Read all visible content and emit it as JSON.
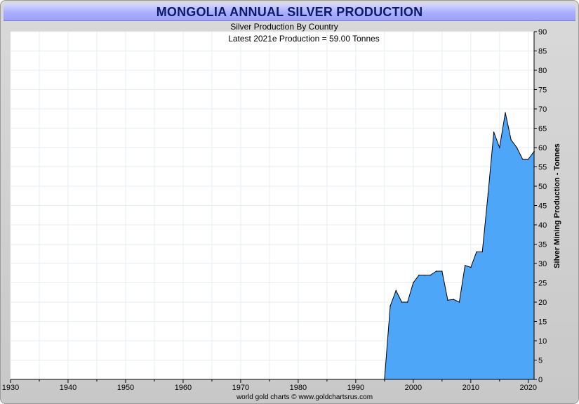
{
  "title": "MONGOLIA ANNUAL SILVER PRODUCTION",
  "chart_data": {
    "type": "area",
    "subtitle": "Silver Production By Country",
    "annotation": "Latest 2021e Production = 59.00 Tonnes",
    "ylabel": "Silver Mining Production - Tonnes",
    "xlabel": "",
    "footer": "world gold charts © www.goldchartsrus.com",
    "xlim": [
      1930,
      2021
    ],
    "ylim": [
      0,
      90
    ],
    "x_ticks": [
      1930,
      1940,
      1950,
      1960,
      1970,
      1980,
      1990,
      2000,
      2010,
      2020
    ],
    "y_ticks": [
      0,
      5,
      10,
      15,
      20,
      25,
      30,
      35,
      40,
      45,
      50,
      55,
      60,
      65,
      70,
      75,
      80,
      85,
      90
    ],
    "grid": true,
    "fill_color": "#4da6f7",
    "line_color": "#000000",
    "series": [
      {
        "name": "Mongolia",
        "x": [
          1995,
          1996,
          1997,
          1998,
          1999,
          2000,
          2001,
          2002,
          2003,
          2004,
          2005,
          2006,
          2007,
          2008,
          2009,
          2010,
          2011,
          2012,
          2013,
          2014,
          2015,
          2016,
          2017,
          2018,
          2019,
          2020,
          2021
        ],
        "values": [
          0,
          19,
          23,
          20,
          20,
          25,
          27,
          27,
          27,
          28,
          28,
          20.5,
          20.7,
          20,
          29.5,
          29,
          33,
          33,
          48,
          64,
          60,
          69,
          62,
          60,
          57,
          57,
          59
        ]
      }
    ]
  }
}
